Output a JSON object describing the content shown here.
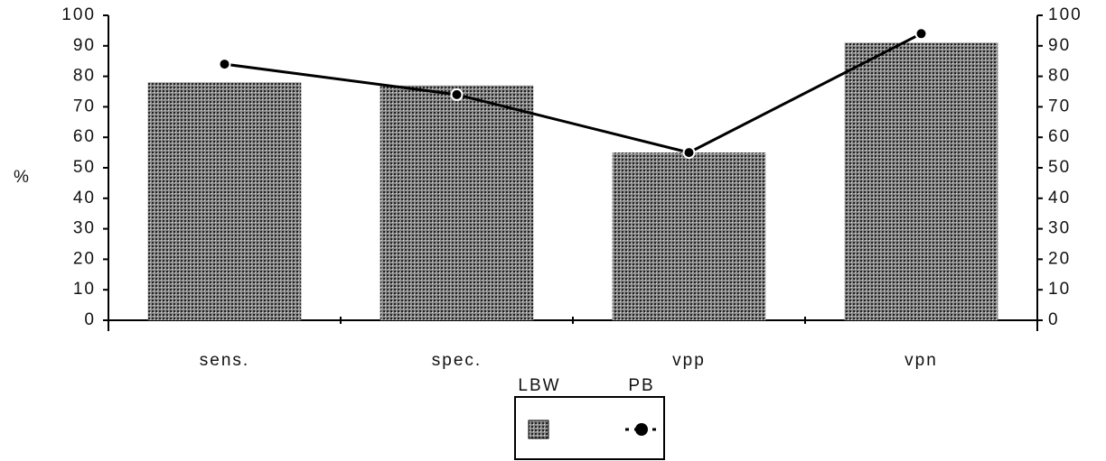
{
  "chart_data": {
    "type": "bar_line",
    "y_label": "%",
    "categories": [
      "sens.",
      "spec.",
      "vpp",
      "vpn"
    ],
    "series": [
      {
        "name": "LBW",
        "type": "bar",
        "color": "#8a8a8a",
        "values": [
          78,
          77,
          55,
          91
        ]
      },
      {
        "name": "PB",
        "type": "line",
        "axis": "y2",
        "color": "#000000",
        "values": [
          84,
          74,
          55,
          94
        ]
      }
    ],
    "ylim": [
      0,
      100
    ],
    "yticks": [
      0,
      10,
      20,
      30,
      40,
      50,
      60,
      70,
      80,
      90,
      100
    ],
    "y2lim": [
      0,
      100
    ],
    "y2ticks": [
      0,
      10,
      20,
      30,
      40,
      50,
      60,
      70,
      80,
      90,
      100
    ],
    "grid": false,
    "legend": "bottom"
  }
}
